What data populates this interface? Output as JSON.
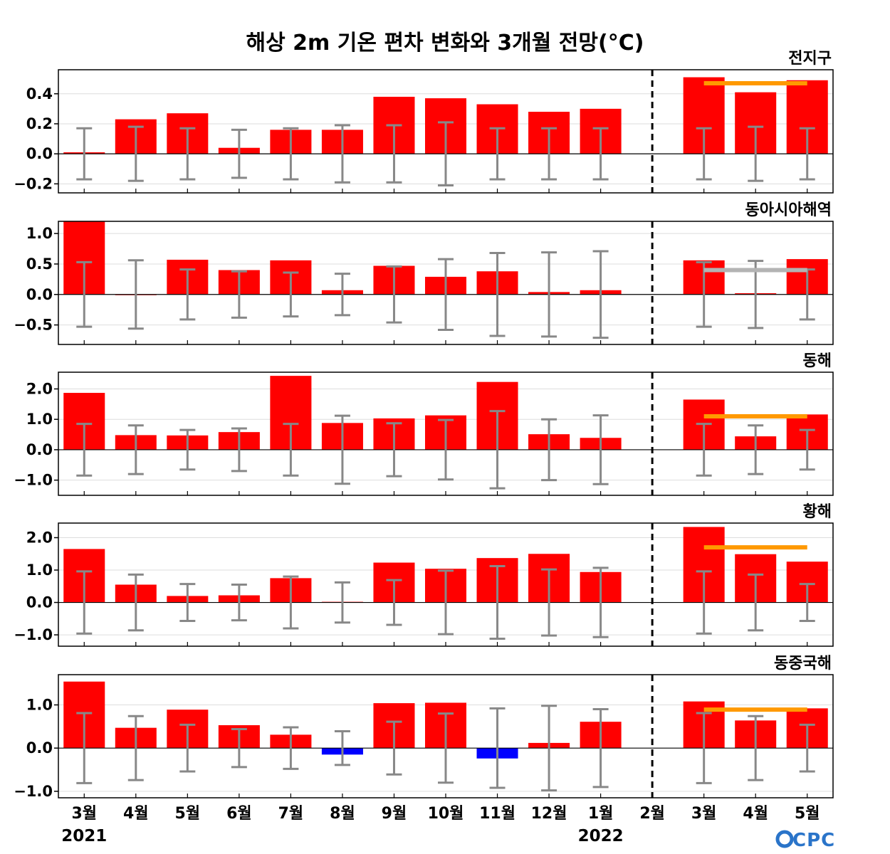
{
  "title": "해상 2m 기온 편차 변화와 3개월 전망(°C)",
  "logo": "CPC",
  "colors": {
    "positive": "#ff0000",
    "negative": "#0000ff",
    "errorbar": "#888888",
    "forecast_orange": "#ff9900",
    "forecast_gray": "#b3b3b3"
  },
  "chart_data": {
    "type": "bar",
    "categories": [
      "3월",
      "4월",
      "5월",
      "6월",
      "7월",
      "8월",
      "9월",
      "10월",
      "11월",
      "12월",
      "1월",
      "2월",
      "3월",
      "4월",
      "5월"
    ],
    "year_labels": [
      {
        "index": 0,
        "label": "2021"
      },
      {
        "index": 10,
        "label": "2022"
      }
    ],
    "divider_after_index": 11,
    "panels": [
      {
        "title": "전지구",
        "ylim": [
          -0.26,
          0.56
        ],
        "yticks": [
          {
            "v": 0.4,
            "label": "0.4"
          },
          {
            "v": 0.2,
            "label": "0.2"
          },
          {
            "v": 0.0,
            "label": "0.0"
          },
          {
            "v": -0.2,
            "label": "−0.2"
          }
        ],
        "values": [
          0.01,
          0.23,
          0.27,
          0.04,
          0.16,
          0.16,
          0.38,
          0.37,
          0.33,
          0.28,
          0.3,
          0.0,
          0.51,
          0.41,
          0.49
        ],
        "errors": [
          0.17,
          0.18,
          0.17,
          0.16,
          0.17,
          0.19,
          0.19,
          0.21,
          0.17,
          0.17,
          0.17,
          null,
          0.17,
          0.18,
          0.17
        ],
        "forecast": {
          "value": 0.47,
          "from": 12,
          "to": 14,
          "color": "orange"
        }
      },
      {
        "title": "동아시아해역",
        "ylim": [
          -0.82,
          1.2
        ],
        "yticks": [
          {
            "v": 1.0,
            "label": "1.0"
          },
          {
            "v": 0.5,
            "label": "0.5"
          },
          {
            "v": 0.0,
            "label": "0.0"
          },
          {
            "v": -0.5,
            "label": "−0.5"
          }
        ],
        "values": [
          1.2,
          0.0,
          0.57,
          0.4,
          0.56,
          0.07,
          0.47,
          0.29,
          0.38,
          0.04,
          0.07,
          0.0,
          0.56,
          0.02,
          0.58
        ],
        "errors": [
          0.53,
          0.56,
          0.41,
          0.38,
          0.36,
          0.34,
          0.46,
          0.58,
          0.68,
          0.69,
          0.71,
          null,
          0.53,
          0.55,
          0.41
        ],
        "forecast": {
          "value": 0.4,
          "from": 12,
          "to": 14,
          "color": "gray"
        }
      },
      {
        "title": "동해",
        "ylim": [
          -1.5,
          2.55
        ],
        "yticks": [
          {
            "v": 2.0,
            "label": "2.0"
          },
          {
            "v": 1.0,
            "label": "1.0"
          },
          {
            "v": 0.0,
            "label": "0.0"
          },
          {
            "v": -1.0,
            "label": "−1.0"
          }
        ],
        "values": [
          1.87,
          0.48,
          0.47,
          0.58,
          2.43,
          0.88,
          1.03,
          1.13,
          2.23,
          0.51,
          0.39,
          0.0,
          1.65,
          0.44,
          1.16
        ],
        "errors": [
          0.85,
          0.8,
          0.65,
          0.7,
          0.85,
          1.12,
          0.87,
          0.98,
          1.27,
          1.0,
          1.13,
          null,
          0.85,
          0.8,
          0.65
        ],
        "forecast": {
          "value": 1.1,
          "from": 12,
          "to": 14,
          "color": "orange"
        }
      },
      {
        "title": "황해",
        "ylim": [
          -1.35,
          2.45
        ],
        "yticks": [
          {
            "v": 2.0,
            "label": "2.0"
          },
          {
            "v": 1.0,
            "label": "1.0"
          },
          {
            "v": 0.0,
            "label": "0.0"
          },
          {
            "v": -1.0,
            "label": "−1.0"
          }
        ],
        "values": [
          1.65,
          0.55,
          0.2,
          0.22,
          0.75,
          0.02,
          1.23,
          1.04,
          1.37,
          1.5,
          0.94,
          0.0,
          2.33,
          1.49,
          1.26
        ],
        "errors": [
          0.96,
          0.86,
          0.57,
          0.55,
          0.8,
          0.62,
          0.69,
          0.98,
          1.12,
          1.02,
          1.07,
          null,
          0.96,
          0.86,
          0.57
        ],
        "forecast": {
          "value": 1.7,
          "from": 12,
          "to": 14,
          "color": "orange"
        }
      },
      {
        "title": "동중국해",
        "ylim": [
          -1.15,
          1.7
        ],
        "yticks": [
          {
            "v": 1.0,
            "label": "1.0"
          },
          {
            "v": 0.0,
            "label": "0.0"
          },
          {
            "v": -1.0,
            "label": "−1.0"
          }
        ],
        "values": [
          1.54,
          0.47,
          0.89,
          0.53,
          0.31,
          -0.15,
          1.04,
          1.05,
          -0.24,
          0.12,
          0.61,
          0.0,
          1.08,
          0.64,
          0.92
        ],
        "errors": [
          0.81,
          0.74,
          0.54,
          0.44,
          0.48,
          0.39,
          0.61,
          0.8,
          0.92,
          0.98,
          0.9,
          null,
          0.81,
          0.74,
          0.54
        ],
        "forecast": {
          "value": 0.89,
          "from": 12,
          "to": 14,
          "color": "orange"
        }
      }
    ]
  }
}
